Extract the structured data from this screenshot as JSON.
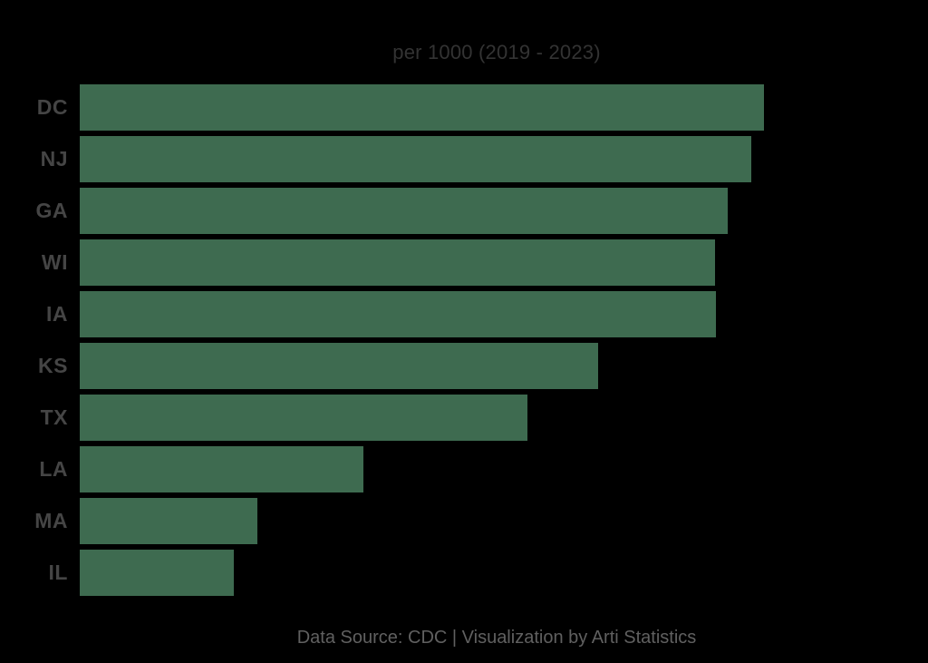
{
  "page": {
    "background_color": "#000000"
  },
  "chart_data": {
    "type": "bar",
    "orientation": "horizontal",
    "title": "per 1000 (2019 - 2023)",
    "title_color": "#333333",
    "categories": [
      "DC",
      "NJ",
      "GA",
      "WI",
      "IA",
      "KS",
      "TX",
      "LA",
      "MA",
      "IL"
    ],
    "values_relative_to_max": [
      1.0,
      0.981,
      0.947,
      0.928,
      0.93,
      0.758,
      0.654,
      0.415,
      0.26,
      0.225
    ],
    "bar_color": "#3E6B50",
    "category_label_color": "#454545",
    "value_axis_labels": "not visible",
    "data_labels": "not visible",
    "grid": "off",
    "legend": "none",
    "footer": "Data Source: CDC | Visualization by Arti Statistics",
    "footer_color": "#606060"
  }
}
